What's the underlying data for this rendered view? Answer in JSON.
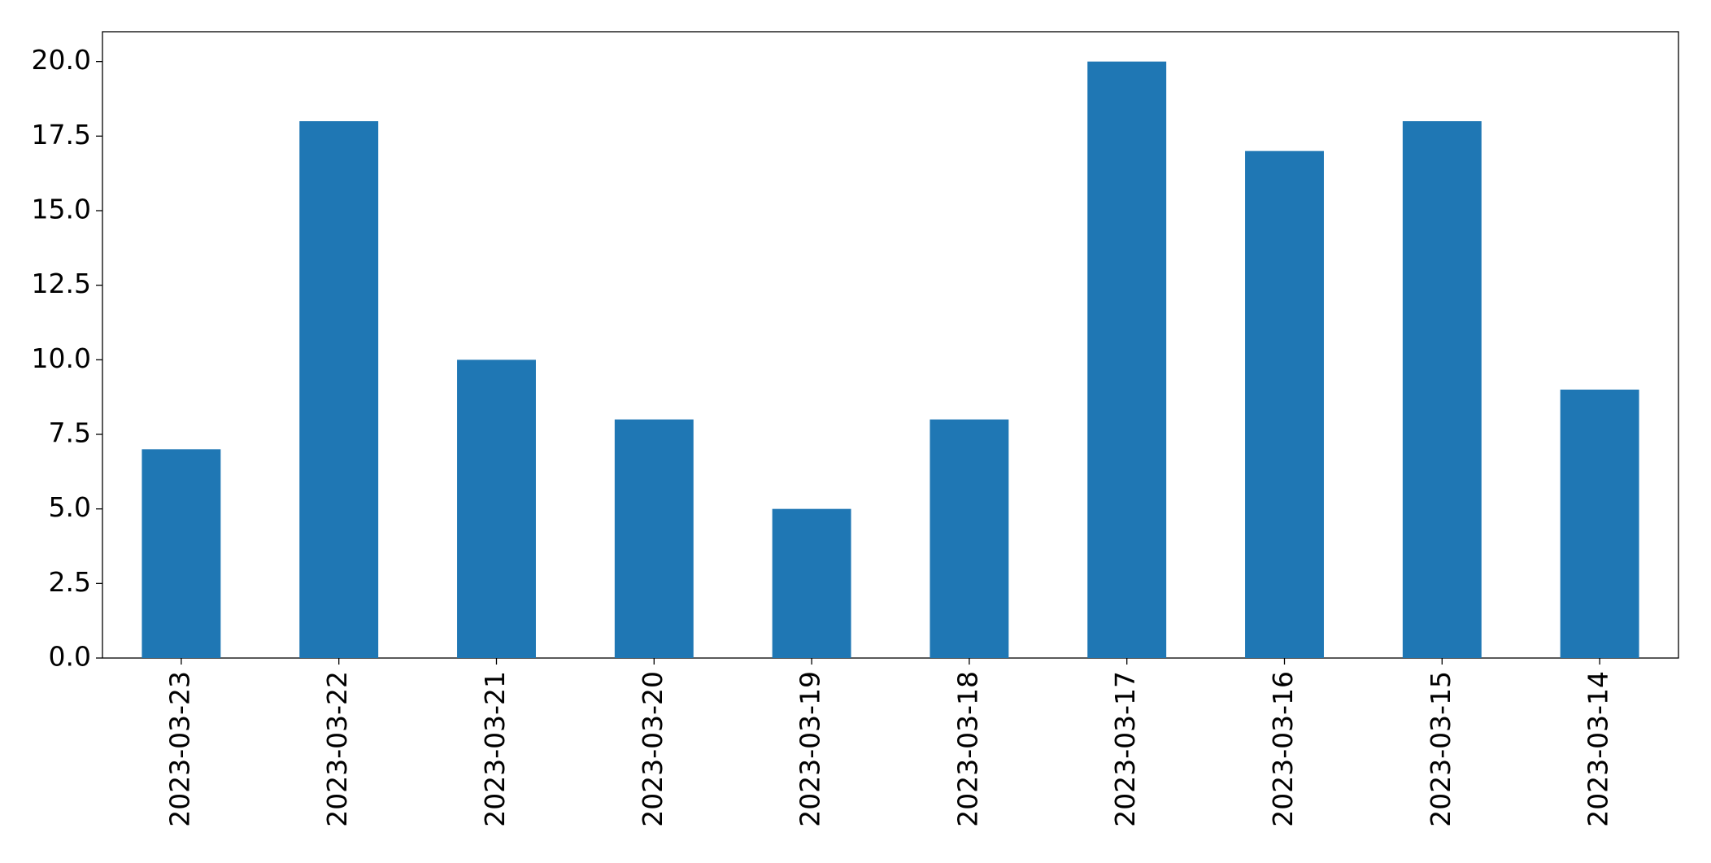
{
  "chart_data": {
    "type": "bar",
    "categories": [
      "2023-03-23",
      "2023-03-22",
      "2023-03-21",
      "2023-03-20",
      "2023-03-19",
      "2023-03-18",
      "2023-03-17",
      "2023-03-16",
      "2023-03-15",
      "2023-03-14"
    ],
    "values": [
      7,
      18,
      10,
      8,
      5,
      8,
      20,
      17,
      18,
      9
    ],
    "color": "#1f77b4",
    "ylim": [
      0,
      21
    ],
    "yticks": [
      {
        "value": 0,
        "label": "0.0"
      },
      2.5,
      {
        "value": 5,
        "label": "5.0"
      },
      7.5,
      {
        "value": 10,
        "label": "10.0"
      },
      12.5,
      {
        "value": 15,
        "label": "15.0"
      },
      17.5,
      {
        "value": 20,
        "label": "20.0"
      }
    ],
    "grid": false
  }
}
